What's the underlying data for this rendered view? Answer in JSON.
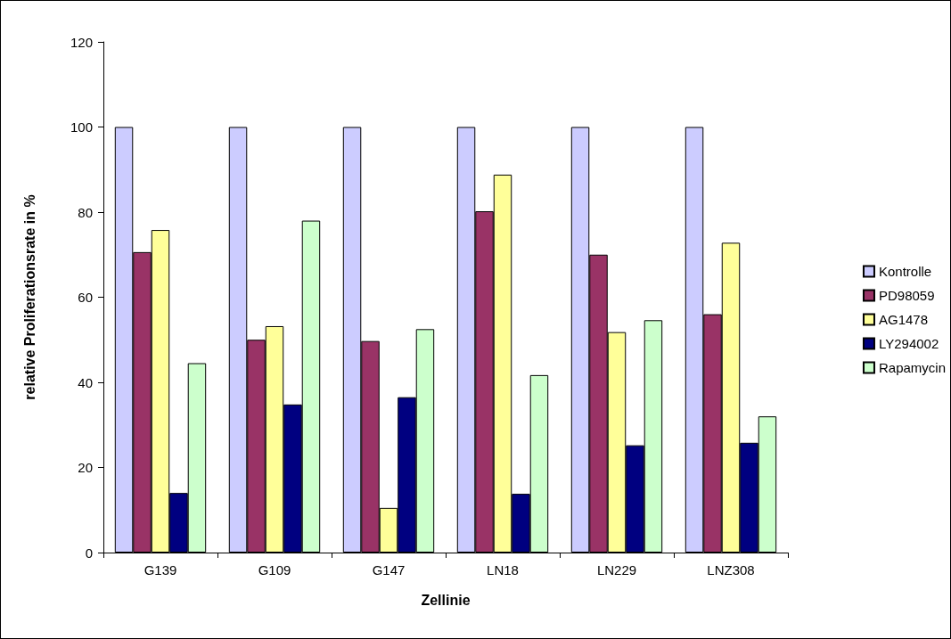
{
  "chart_data": {
    "type": "bar",
    "xlabel": "Zellinie",
    "ylabel": "relative Proliferationsrate in %",
    "categories": [
      "G139",
      "G109",
      "G147",
      "LN18",
      "LN229",
      "LNZ308"
    ],
    "series": [
      {
        "name": "Kontrolle",
        "color": "#ccccff",
        "values": [
          100,
          100,
          100,
          100,
          100,
          100
        ]
      },
      {
        "name": "PD98059",
        "color": "#993366",
        "values": [
          70.6,
          50,
          49.7,
          80.2,
          70,
          56
        ]
      },
      {
        "name": "AG1478",
        "color": "#ffff99",
        "values": [
          75.8,
          53.2,
          10.5,
          88.8,
          51.8,
          72.8
        ]
      },
      {
        "name": "LY294002",
        "color": "#000080",
        "values": [
          14,
          34.8,
          36.5,
          13.8,
          25.2,
          25.8
        ]
      },
      {
        "name": "Rapamycin",
        "color": "#ccffcc",
        "values": [
          44.5,
          78,
          52.5,
          41.7,
          54.6,
          32
        ]
      }
    ],
    "ylim": [
      0,
      120
    ],
    "yticks": [
      0,
      20,
      40,
      60,
      80,
      100,
      120
    ],
    "grid": false,
    "legend": "right"
  }
}
